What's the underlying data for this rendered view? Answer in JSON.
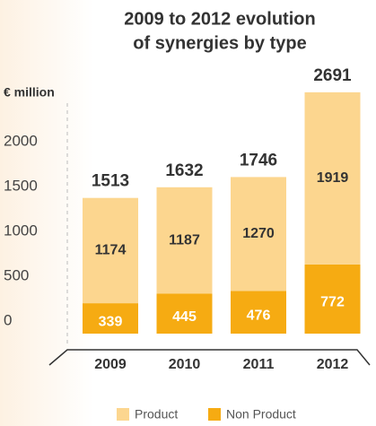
{
  "chart_data": {
    "type": "stacked_bar",
    "title": [
      "2009 to 2012 evolution",
      "of synergies by type"
    ],
    "y_label": "€ million",
    "categories": [
      "2009",
      "2010",
      "2011",
      "2012"
    ],
    "series": [
      {
        "name": "Non Product",
        "color": "#f6ab12",
        "values": [
          339,
          445,
          476,
          772
        ]
      },
      {
        "name": "Product",
        "color": "#fcd68f",
        "values": [
          1174,
          1187,
          1270,
          1919
        ]
      }
    ],
    "totals": [
      1513,
      1632,
      1746,
      2691
    ],
    "ylim": [
      0,
      2700
    ],
    "yticks": [
      0,
      500,
      1000,
      1500,
      2000
    ],
    "grid": false
  }
}
